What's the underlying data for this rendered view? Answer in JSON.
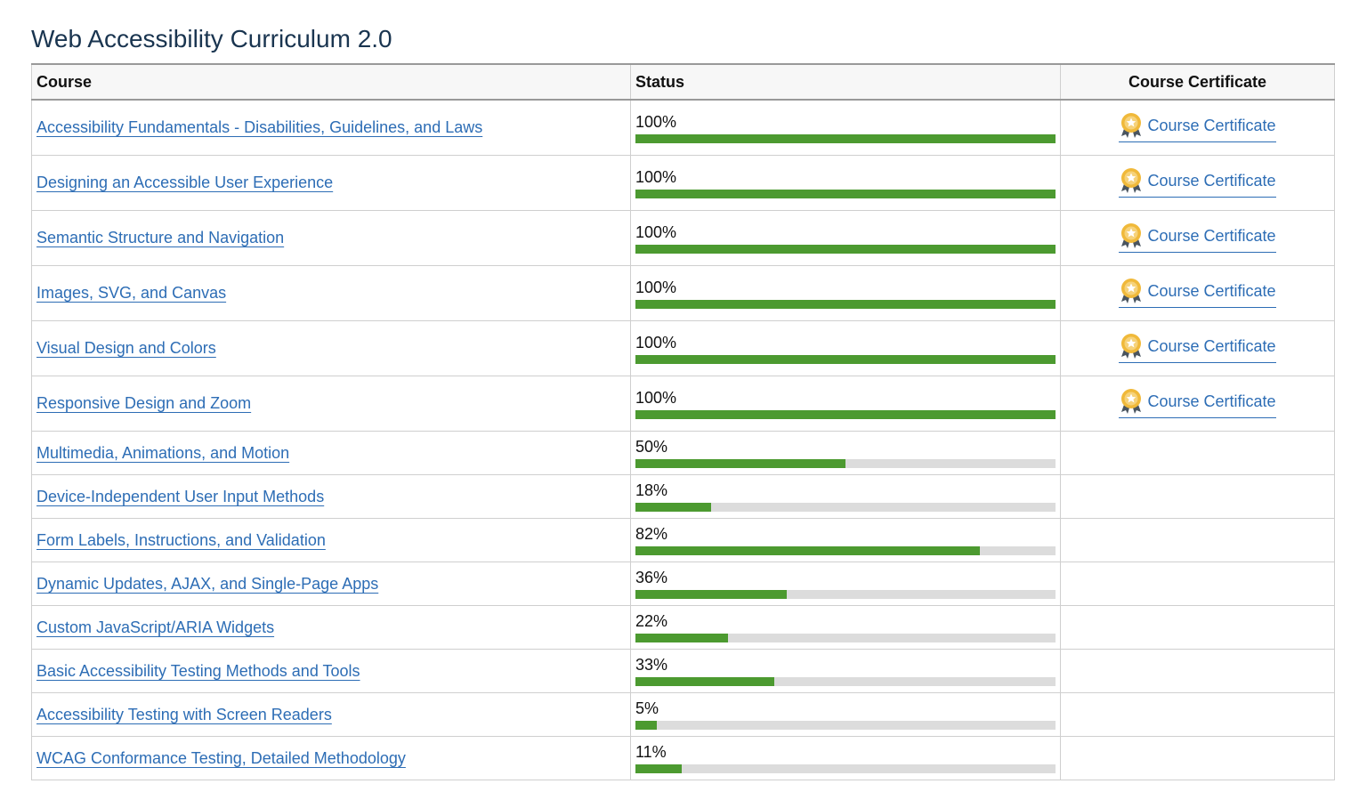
{
  "header": {
    "title": "Web Accessibility Curriculum 2.0"
  },
  "table": {
    "columns": [
      "Course",
      "Status",
      "Course Certificate"
    ],
    "rows": [
      {
        "course": "Accessibility Fundamentals - Disabilities, Guidelines, and Laws",
        "percent": 100,
        "percent_label": "100%",
        "certificate": "Course Certificate"
      },
      {
        "course": "Designing an Accessible User Experience",
        "percent": 100,
        "percent_label": "100%",
        "certificate": "Course Certificate"
      },
      {
        "course": "Semantic Structure and Navigation",
        "percent": 100,
        "percent_label": "100%",
        "certificate": "Course Certificate"
      },
      {
        "course": "Images, SVG, and Canvas",
        "percent": 100,
        "percent_label": "100%",
        "certificate": "Course Certificate"
      },
      {
        "course": "Visual Design and Colors",
        "percent": 100,
        "percent_label": "100%",
        "certificate": "Course Certificate"
      },
      {
        "course": "Responsive Design and Zoom",
        "percent": 100,
        "percent_label": "100%",
        "certificate": "Course Certificate"
      },
      {
        "course": "Multimedia, Animations, and Motion",
        "percent": 50,
        "percent_label": "50%"
      },
      {
        "course": "Device-Independent User Input Methods",
        "percent": 18,
        "percent_label": "18%"
      },
      {
        "course": "Form Labels, Instructions, and Validation",
        "percent": 82,
        "percent_label": "82%"
      },
      {
        "course": "Dynamic Updates, AJAX, and Single-Page Apps",
        "percent": 36,
        "percent_label": "36%"
      },
      {
        "course": "Custom JavaScript/ARIA Widgets",
        "percent": 22,
        "percent_label": "22%"
      },
      {
        "course": "Basic Accessibility Testing Methods and Tools",
        "percent": 33,
        "percent_label": "33%"
      },
      {
        "course": "Accessibility Testing with Screen Readers",
        "percent": 5,
        "percent_label": "5%"
      },
      {
        "course": "WCAG Conformance Testing, Detailed Methodology",
        "percent": 11,
        "percent_label": "11%"
      }
    ]
  }
}
